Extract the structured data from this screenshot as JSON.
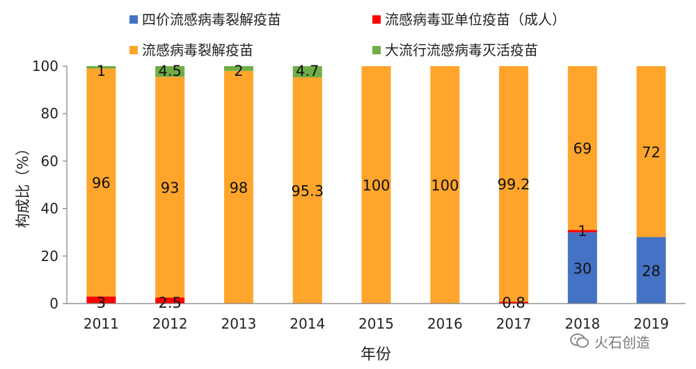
{
  "chart_data": {
    "type": "bar",
    "stacked": true,
    "title": "",
    "xlabel": "年份",
    "ylabel": "构成比（%）",
    "ylim": [
      0,
      100
    ],
    "yticks": [
      0,
      20,
      40,
      60,
      80,
      100
    ],
    "grid": false,
    "legend_position": "top",
    "categories": [
      "2011",
      "2012",
      "2013",
      "2014",
      "2015",
      "2016",
      "2017",
      "2018",
      "2019"
    ],
    "series": [
      {
        "name": "四价流感病毒裂解疫苗",
        "color": "#4472C4",
        "values": [
          0,
          0,
          0,
          0,
          0,
          0,
          0,
          30,
          28
        ],
        "labels": [
          "",
          "",
          "",
          "",
          "",
          "",
          "",
          "30",
          "28"
        ]
      },
      {
        "name": "流感病毒亚单位疫苗（成人）",
        "color": "#FF0000",
        "values": [
          3,
          2.5,
          0,
          0,
          0,
          0,
          0.8,
          1,
          0
        ],
        "labels": [
          "3",
          "2.5",
          "",
          "",
          "",
          "",
          "0.8",
          "1",
          ""
        ]
      },
      {
        "name": "流感病毒裂解疫苗",
        "color": "#FFA52C",
        "values": [
          96,
          93,
          98,
          95.3,
          100,
          100,
          99.2,
          69,
          72
        ],
        "labels": [
          "96",
          "93",
          "98",
          "95.3",
          "100",
          "100",
          "99.2",
          "69",
          "72"
        ]
      },
      {
        "name": "大流行流感病毒灭活疫苗",
        "color": "#70AD47",
        "values": [
          1,
          4.5,
          2,
          4.7,
          0,
          0,
          0,
          0,
          0
        ],
        "labels": [
          "1",
          "4.5",
          "2",
          "4.7",
          "",
          "",
          "",
          "",
          ""
        ]
      }
    ]
  },
  "watermark": {
    "text": "火石创造",
    "icon": "wechat-icon"
  }
}
